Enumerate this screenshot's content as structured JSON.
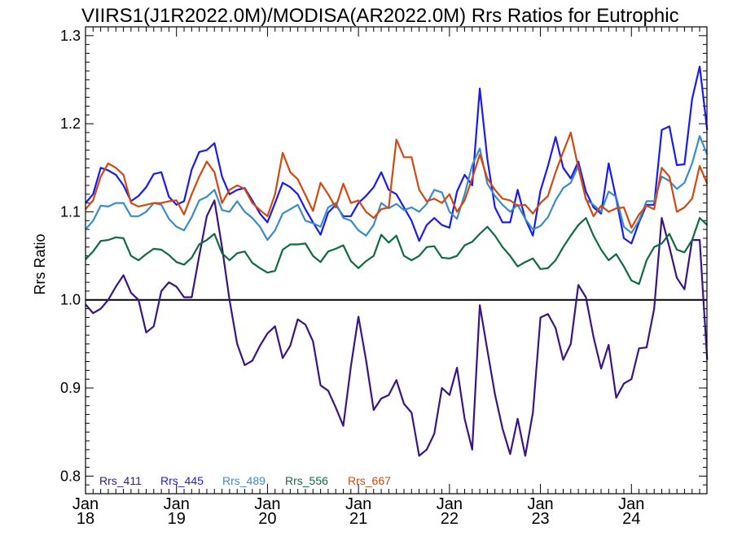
{
  "chart_data": {
    "type": "line",
    "title": "VIIRS1(J1R2022.0M)/MODISA(AR2022.0M)  Rrs Ratios for Eutrophic",
    "ylabel": "Rrs Ratio",
    "xlabel": "",
    "ylim": [
      0.78,
      1.31
    ],
    "xlim": [
      2018.0,
      2024.83
    ],
    "yticks": [
      0.8,
      0.9,
      1.0,
      1.1,
      1.2,
      1.3
    ],
    "ytick_labels": [
      "0.8",
      "0.9",
      "1.0",
      "1.1",
      "1.2",
      "1.3"
    ],
    "xticks": [
      {
        "month": "Jan",
        "year": "18",
        "x": 2018.0
      },
      {
        "month": "Jan",
        "year": "19",
        "x": 2019.0
      },
      {
        "month": "Jan",
        "year": "20",
        "x": 2020.0
      },
      {
        "month": "Jan",
        "year": "21",
        "x": 2021.0
      },
      {
        "month": "Jan",
        "year": "22",
        "x": 2022.0
      },
      {
        "month": "Jan",
        "year": "23",
        "x": 2023.0
      },
      {
        "month": "Jan",
        "year": "24",
        "x": 2024.0
      }
    ],
    "reference_line": 1.0,
    "legend_position": "bottom-left",
    "x": [
      2018.0,
      2018.083,
      2018.167,
      2018.25,
      2018.333,
      2018.417,
      2018.5,
      2018.583,
      2018.667,
      2018.75,
      2018.833,
      2018.917,
      2019.0,
      2019.083,
      2019.167,
      2019.25,
      2019.333,
      2019.417,
      2019.5,
      2019.583,
      2019.667,
      2019.75,
      2019.833,
      2019.917,
      2020.0,
      2020.083,
      2020.167,
      2020.25,
      2020.333,
      2020.417,
      2020.5,
      2020.583,
      2020.667,
      2020.75,
      2020.833,
      2020.917,
      2021.0,
      2021.083,
      2021.167,
      2021.25,
      2021.333,
      2021.417,
      2021.5,
      2021.583,
      2021.667,
      2021.75,
      2021.833,
      2021.917,
      2022.0,
      2022.083,
      2022.167,
      2022.25,
      2022.333,
      2022.417,
      2022.5,
      2022.583,
      2022.667,
      2022.75,
      2022.833,
      2022.917,
      2023.0,
      2023.083,
      2023.167,
      2023.25,
      2023.333,
      2023.417,
      2023.5,
      2023.583,
      2023.667,
      2023.75,
      2023.833,
      2023.917,
      2024.0,
      2024.083,
      2024.167,
      2024.25,
      2024.333,
      2024.417,
      2024.5,
      2024.583,
      2024.667,
      2024.75,
      2024.833
    ],
    "series": [
      {
        "name": "Rrs_411",
        "color": "#3c1480",
        "values": [
          0.995,
          0.985,
          0.99,
          1.0,
          1.015,
          1.028,
          1.008,
          1.0,
          0.963,
          0.97,
          1.01,
          1.02,
          1.015,
          1.003,
          1.003,
          1.05,
          1.095,
          1.113,
          1.06,
          1.0,
          0.95,
          0.926,
          0.931,
          0.948,
          0.962,
          0.97,
          0.934,
          0.948,
          0.978,
          0.972,
          0.953,
          0.903,
          0.897,
          0.878,
          0.857,
          0.925,
          0.981,
          0.932,
          0.875,
          0.888,
          0.892,
          0.909,
          0.882,
          0.872,
          0.823,
          0.83,
          0.848,
          0.9,
          0.892,
          0.923,
          0.865,
          0.83,
          0.994,
          0.943,
          0.893,
          0.854,
          0.825,
          0.865,
          0.823,
          0.872,
          0.98,
          0.984,
          0.968,
          0.932,
          0.95,
          1.017,
          1.003,
          0.958,
          0.922,
          0.949,
          0.889,
          0.905,
          0.91,
          0.945,
          0.946,
          0.99,
          1.093,
          1.06,
          1.025,
          1.012,
          1.068,
          1.068,
          0.932
        ]
      },
      {
        "name": "Rrs_445",
        "color": "#1a1aee",
        "values": [
          1.11,
          1.12,
          1.15,
          1.147,
          1.142,
          1.13,
          1.112,
          1.118,
          1.128,
          1.143,
          1.145,
          1.117,
          1.108,
          1.112,
          1.148,
          1.168,
          1.17,
          1.178,
          1.14,
          1.12,
          1.125,
          1.127,
          1.113,
          1.098,
          1.088,
          1.11,
          1.133,
          1.128,
          1.12,
          1.103,
          1.088,
          1.074,
          1.099,
          1.108,
          1.095,
          1.095,
          1.11,
          1.118,
          1.128,
          1.145,
          1.125,
          1.12,
          1.105,
          1.09,
          1.067,
          1.085,
          1.093,
          1.085,
          1.082,
          1.123,
          1.142,
          1.13,
          1.24,
          1.16,
          1.105,
          1.088,
          1.088,
          1.125,
          1.092,
          1.073,
          1.124,
          1.152,
          1.185,
          1.15,
          1.138,
          1.157,
          1.123,
          1.105,
          1.098,
          1.155,
          1.115,
          1.07,
          1.064,
          1.088,
          1.108,
          1.108,
          1.193,
          1.197,
          1.153,
          1.154,
          1.228,
          1.265,
          1.193
        ]
      },
      {
        "name": "Rrs_489",
        "color": "#3a8cc6",
        "values": [
          1.08,
          1.09,
          1.107,
          1.106,
          1.11,
          1.11,
          1.095,
          1.095,
          1.1,
          1.11,
          1.108,
          1.092,
          1.083,
          1.079,
          1.094,
          1.113,
          1.117,
          1.125,
          1.102,
          1.1,
          1.112,
          1.1,
          1.093,
          1.083,
          1.068,
          1.079,
          1.098,
          1.103,
          1.108,
          1.09,
          1.087,
          1.083,
          1.105,
          1.11,
          1.093,
          1.09,
          1.079,
          1.073,
          1.085,
          1.11,
          1.104,
          1.109,
          1.102,
          1.105,
          1.1,
          1.109,
          1.125,
          1.122,
          1.1,
          1.092,
          1.12,
          1.153,
          1.172,
          1.132,
          1.118,
          1.108,
          1.1,
          1.108,
          1.092,
          1.08,
          1.084,
          1.094,
          1.113,
          1.127,
          1.133,
          1.152,
          1.114,
          1.108,
          1.1,
          1.123,
          1.117,
          1.083,
          1.076,
          1.09,
          1.112,
          1.112,
          1.14,
          1.135,
          1.126,
          1.133,
          1.155,
          1.186,
          1.165
        ]
      },
      {
        "name": "Rrs_556",
        "color": "#0d6b3d",
        "values": [
          1.046,
          1.055,
          1.067,
          1.068,
          1.071,
          1.07,
          1.05,
          1.045,
          1.052,
          1.058,
          1.057,
          1.051,
          1.043,
          1.04,
          1.048,
          1.063,
          1.068,
          1.075,
          1.053,
          1.045,
          1.053,
          1.055,
          1.042,
          1.036,
          1.031,
          1.033,
          1.057,
          1.063,
          1.063,
          1.064,
          1.05,
          1.043,
          1.055,
          1.058,
          1.062,
          1.044,
          1.036,
          1.044,
          1.05,
          1.074,
          1.065,
          1.073,
          1.05,
          1.045,
          1.05,
          1.06,
          1.061,
          1.048,
          1.047,
          1.05,
          1.062,
          1.066,
          1.075,
          1.083,
          1.073,
          1.06,
          1.05,
          1.038,
          1.043,
          1.047,
          1.035,
          1.036,
          1.045,
          1.06,
          1.073,
          1.085,
          1.093,
          1.073,
          1.057,
          1.045,
          1.052,
          1.038,
          1.022,
          1.018,
          1.045,
          1.06,
          1.064,
          1.075,
          1.057,
          1.054,
          1.068,
          1.093,
          1.085
        ]
      },
      {
        "name": "Rrs_667",
        "color": "#d1490e",
        "values": [
          1.103,
          1.113,
          1.14,
          1.155,
          1.15,
          1.142,
          1.11,
          1.106,
          1.108,
          1.11,
          1.11,
          1.112,
          1.113,
          1.097,
          1.12,
          1.14,
          1.157,
          1.145,
          1.11,
          1.125,
          1.13,
          1.126,
          1.11,
          1.102,
          1.095,
          1.12,
          1.167,
          1.145,
          1.137,
          1.119,
          1.101,
          1.133,
          1.12,
          1.105,
          1.132,
          1.11,
          1.113,
          1.1,
          1.093,
          1.103,
          1.105,
          1.182,
          1.162,
          1.162,
          1.125,
          1.112,
          1.115,
          1.11,
          1.12,
          1.1,
          1.113,
          1.138,
          1.165,
          1.138,
          1.125,
          1.115,
          1.113,
          1.107,
          1.108,
          1.098,
          1.11,
          1.118,
          1.145,
          1.168,
          1.19,
          1.15,
          1.115,
          1.095,
          1.107,
          1.1,
          1.104,
          1.105,
          1.082,
          1.097,
          1.107,
          1.103,
          1.15,
          1.14,
          1.1,
          1.105,
          1.115,
          1.152,
          1.132
        ]
      }
    ]
  }
}
